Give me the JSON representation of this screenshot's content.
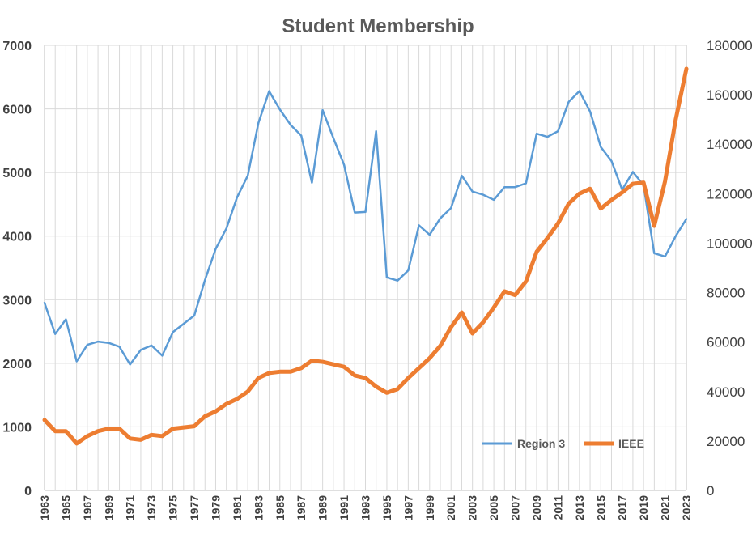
{
  "chart_data": {
    "type": "line",
    "title": "Student Membership",
    "xlabel": "",
    "ylabel": "",
    "x": [
      1963,
      1964,
      1965,
      1966,
      1967,
      1968,
      1969,
      1970,
      1971,
      1972,
      1973,
      1974,
      1975,
      1976,
      1977,
      1978,
      1979,
      1980,
      1981,
      1982,
      1983,
      1984,
      1985,
      1986,
      1987,
      1988,
      1989,
      1990,
      1991,
      1992,
      1993,
      1994,
      1995,
      1996,
      1997,
      1998,
      1999,
      2000,
      2001,
      2002,
      2003,
      2004,
      2005,
      2006,
      2007,
      2008,
      2009,
      2010,
      2011,
      2012,
      2013,
      2014,
      2015,
      2016,
      2017,
      2018,
      2019,
      2020,
      2021,
      2022,
      2023
    ],
    "x_tick_labels": [
      "1963",
      "1965",
      "1967",
      "1969",
      "1971",
      "1973",
      "1975",
      "1977",
      "1979",
      "1981",
      "1983",
      "1985",
      "1987",
      "1989",
      "1991",
      "1993",
      "1995",
      "1997",
      "1999",
      "2001",
      "2003",
      "2005",
      "2007",
      "2009",
      "2011",
      "2013",
      "2015",
      "2017",
      "2019",
      "2021",
      "2023"
    ],
    "y_left": {
      "range": [
        0,
        7000
      ],
      "ticks": [
        "0",
        "1000",
        "2000",
        "3000",
        "4000",
        "5000",
        "6000",
        "7000"
      ]
    },
    "y_right": {
      "range": [
        0,
        180000
      ],
      "ticks": [
        "0",
        "20000",
        "40000",
        "60000",
        "80000",
        "100000",
        "120000",
        "140000",
        "160000",
        "180000"
      ]
    },
    "grid": true,
    "legend_position": "bottom-right",
    "series": [
      {
        "name": "Region 3",
        "axis": "left",
        "color": "#5b9bd5",
        "values": [
          2950,
          2460,
          2690,
          2030,
          2290,
          2340,
          2320,
          2260,
          1980,
          2210,
          2280,
          2120,
          2490,
          2620,
          2750,
          3310,
          3800,
          4120,
          4610,
          4950,
          5780,
          6280,
          5990,
          5750,
          5580,
          4840,
          5980,
          5540,
          5120,
          4370,
          4380,
          5650,
          3350,
          3300,
          3460,
          4170,
          4020,
          4280,
          4440,
          4950,
          4700,
          4650,
          4570,
          4770,
          4770,
          4830,
          5610,
          5560,
          5650,
          6110,
          6280,
          5960,
          5400,
          5180,
          4730,
          5010,
          4800,
          3730,
          3680,
          4000,
          4270
        ]
      },
      {
        "name": "IEEE",
        "axis": "right",
        "color": "#ed7d31",
        "values": [
          28500,
          24000,
          24000,
          19000,
          22000,
          24000,
          25000,
          25000,
          21000,
          20500,
          22500,
          22000,
          25000,
          25500,
          26000,
          30000,
          32000,
          35000,
          37000,
          40000,
          45500,
          47500,
          48000,
          48000,
          49500,
          52500,
          52000,
          51000,
          50000,
          46500,
          45500,
          42000,
          39500,
          41000,
          45500,
          49500,
          53500,
          58500,
          66000,
          72000,
          63500,
          68000,
          74000,
          80500,
          79000,
          84500,
          96500,
          102000,
          108000,
          116000,
          120000,
          122000,
          114000,
          117500,
          120500,
          124000,
          124500,
          107000,
          125000,
          150000,
          170500
        ]
      }
    ]
  }
}
